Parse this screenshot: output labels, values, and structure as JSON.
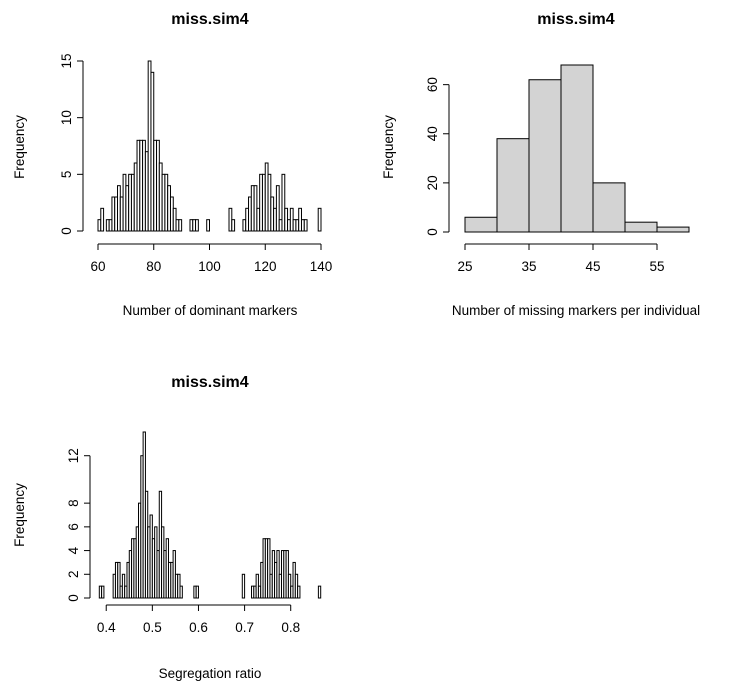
{
  "chart_data": [
    {
      "type": "bar",
      "title": "miss.sim4",
      "xlabel": "Number of dominant markers",
      "ylabel": "Frequency",
      "xlim": [
        60,
        140
      ],
      "ylim": [
        0,
        15
      ],
      "xticks": [
        60,
        80,
        100,
        120,
        140
      ],
      "yticks": [
        0,
        5,
        10,
        15
      ],
      "bar_color": "#ffffff",
      "bins": [
        [
          60,
          61,
          1
        ],
        [
          61,
          62,
          2
        ],
        [
          62,
          63,
          0
        ],
        [
          63,
          64,
          1
        ],
        [
          64,
          65,
          1
        ],
        [
          65,
          66,
          3
        ],
        [
          66,
          67,
          3
        ],
        [
          67,
          68,
          4
        ],
        [
          68,
          69,
          3
        ],
        [
          69,
          70,
          5
        ],
        [
          70,
          71,
          4
        ],
        [
          71,
          72,
          5
        ],
        [
          72,
          73,
          5
        ],
        [
          73,
          74,
          6
        ],
        [
          74,
          75,
          8
        ],
        [
          75,
          76,
          8
        ],
        [
          76,
          77,
          8
        ],
        [
          77,
          78,
          7
        ],
        [
          78,
          79,
          15
        ],
        [
          79,
          80,
          14
        ],
        [
          80,
          81,
          8
        ],
        [
          81,
          82,
          8
        ],
        [
          82,
          83,
          6
        ],
        [
          83,
          84,
          5
        ],
        [
          84,
          85,
          5
        ],
        [
          85,
          86,
          4
        ],
        [
          86,
          87,
          3
        ],
        [
          87,
          88,
          2
        ],
        [
          88,
          89,
          1
        ],
        [
          89,
          90,
          1
        ],
        [
          90,
          91,
          0
        ],
        [
          91,
          92,
          0
        ],
        [
          92,
          93,
          0
        ],
        [
          93,
          94,
          1
        ],
        [
          94,
          95,
          1
        ],
        [
          95,
          96,
          1
        ],
        [
          96,
          97,
          0
        ],
        [
          97,
          98,
          0
        ],
        [
          98,
          99,
          0
        ],
        [
          99,
          100,
          1
        ],
        [
          100,
          101,
          0
        ],
        [
          101,
          102,
          0
        ],
        [
          102,
          103,
          0
        ],
        [
          103,
          104,
          0
        ],
        [
          104,
          105,
          0
        ],
        [
          105,
          106,
          0
        ],
        [
          106,
          107,
          0
        ],
        [
          107,
          108,
          2
        ],
        [
          108,
          109,
          1
        ],
        [
          109,
          110,
          0
        ],
        [
          110,
          111,
          0
        ],
        [
          111,
          112,
          0
        ],
        [
          112,
          113,
          1
        ],
        [
          113,
          114,
          2
        ],
        [
          114,
          115,
          3
        ],
        [
          115,
          116,
          4
        ],
        [
          116,
          117,
          4
        ],
        [
          117,
          118,
          2
        ],
        [
          118,
          119,
          5
        ],
        [
          119,
          120,
          5
        ],
        [
          120,
          121,
          6
        ],
        [
          121,
          122,
          5
        ],
        [
          122,
          123,
          3
        ],
        [
          123,
          124,
          2
        ],
        [
          124,
          125,
          4
        ],
        [
          125,
          126,
          1
        ],
        [
          126,
          127,
          5
        ],
        [
          127,
          128,
          2
        ],
        [
          128,
          129,
          1
        ],
        [
          129,
          130,
          2
        ],
        [
          130,
          131,
          1
        ],
        [
          131,
          132,
          1
        ],
        [
          132,
          133,
          2
        ],
        [
          133,
          134,
          1
        ],
        [
          134,
          135,
          1
        ],
        [
          135,
          136,
          0
        ],
        [
          136,
          137,
          0
        ],
        [
          137,
          138,
          0
        ],
        [
          138,
          139,
          0
        ],
        [
          139,
          140,
          2
        ]
      ]
    },
    {
      "type": "bar",
      "title": "miss.sim4",
      "xlabel": "Number of missing markers per individual",
      "ylabel": "Frequency",
      "xlim": [
        25,
        60
      ],
      "ylim": [
        0,
        68
      ],
      "xticks": [
        25,
        35,
        45,
        55
      ],
      "yticks": [
        0,
        20,
        40,
        60
      ],
      "bar_color": "#d3d3d3",
      "bins": [
        [
          25,
          30,
          6
        ],
        [
          30,
          35,
          38
        ],
        [
          35,
          40,
          62
        ],
        [
          40,
          45,
          68
        ],
        [
          45,
          50,
          20
        ],
        [
          50,
          55,
          4
        ],
        [
          55,
          60,
          2
        ]
      ]
    },
    {
      "type": "bar",
      "title": "miss.sim4",
      "xlabel": "Segregation ratio",
      "ylabel": "Frequency",
      "xlim": [
        0.38,
        0.87
      ],
      "ylim": [
        0,
        14
      ],
      "xticks": [
        0.4,
        0.5,
        0.6,
        0.7,
        0.8
      ],
      "yticks": [
        0,
        2,
        4,
        6,
        8,
        12
      ],
      "bar_color": "#ffffff",
      "bins": [
        [
          0.385,
          0.39,
          1
        ],
        [
          0.39,
          0.395,
          1
        ],
        [
          0.395,
          0.4,
          0
        ],
        [
          0.4,
          0.405,
          0
        ],
        [
          0.405,
          0.41,
          0
        ],
        [
          0.41,
          0.415,
          0
        ],
        [
          0.415,
          0.42,
          2
        ],
        [
          0.42,
          0.425,
          3
        ],
        [
          0.425,
          0.43,
          3
        ],
        [
          0.43,
          0.435,
          1
        ],
        [
          0.435,
          0.44,
          2
        ],
        [
          0.44,
          0.445,
          1
        ],
        [
          0.445,
          0.45,
          3
        ],
        [
          0.45,
          0.455,
          4
        ],
        [
          0.455,
          0.46,
          5
        ],
        [
          0.46,
          0.465,
          5
        ],
        [
          0.465,
          0.47,
          6
        ],
        [
          0.47,
          0.475,
          8
        ],
        [
          0.475,
          0.48,
          12
        ],
        [
          0.48,
          0.485,
          14
        ],
        [
          0.485,
          0.49,
          9
        ],
        [
          0.49,
          0.495,
          6
        ],
        [
          0.495,
          0.5,
          7
        ],
        [
          0.5,
          0.505,
          5
        ],
        [
          0.505,
          0.51,
          6
        ],
        [
          0.51,
          0.515,
          4
        ],
        [
          0.515,
          0.52,
          9
        ],
        [
          0.52,
          0.525,
          6
        ],
        [
          0.525,
          0.53,
          4
        ],
        [
          0.53,
          0.535,
          5
        ],
        [
          0.535,
          0.54,
          3
        ],
        [
          0.54,
          0.545,
          3
        ],
        [
          0.545,
          0.55,
          4
        ],
        [
          0.55,
          0.555,
          2
        ],
        [
          0.555,
          0.56,
          2
        ],
        [
          0.56,
          0.565,
          1
        ],
        [
          0.565,
          0.57,
          0
        ],
        [
          0.57,
          0.575,
          0
        ],
        [
          0.575,
          0.58,
          0
        ],
        [
          0.58,
          0.585,
          0
        ],
        [
          0.585,
          0.59,
          0
        ],
        [
          0.59,
          0.595,
          1
        ],
        [
          0.595,
          0.6,
          1
        ],
        [
          0.6,
          0.605,
          0
        ],
        [
          0.605,
          0.61,
          0
        ],
        [
          0.61,
          0.615,
          0
        ],
        [
          0.615,
          0.62,
          0
        ],
        [
          0.62,
          0.625,
          0
        ],
        [
          0.625,
          0.63,
          0
        ],
        [
          0.63,
          0.635,
          0
        ],
        [
          0.635,
          0.64,
          0
        ],
        [
          0.64,
          0.645,
          0
        ],
        [
          0.645,
          0.65,
          0
        ],
        [
          0.65,
          0.655,
          0
        ],
        [
          0.655,
          0.66,
          0
        ],
        [
          0.66,
          0.665,
          0
        ],
        [
          0.665,
          0.67,
          0
        ],
        [
          0.67,
          0.675,
          0
        ],
        [
          0.675,
          0.68,
          0
        ],
        [
          0.68,
          0.685,
          0
        ],
        [
          0.685,
          0.69,
          0
        ],
        [
          0.69,
          0.695,
          0
        ],
        [
          0.695,
          0.7,
          2
        ],
        [
          0.7,
          0.705,
          0
        ],
        [
          0.705,
          0.71,
          0
        ],
        [
          0.71,
          0.715,
          0
        ],
        [
          0.715,
          0.72,
          1
        ],
        [
          0.72,
          0.725,
          1
        ],
        [
          0.725,
          0.73,
          2
        ],
        [
          0.73,
          0.735,
          1
        ],
        [
          0.735,
          0.74,
          3
        ],
        [
          0.74,
          0.745,
          5
        ],
        [
          0.745,
          0.75,
          5
        ],
        [
          0.75,
          0.755,
          5
        ],
        [
          0.755,
          0.76,
          2
        ],
        [
          0.76,
          0.765,
          4
        ],
        [
          0.765,
          0.77,
          3
        ],
        [
          0.77,
          0.775,
          4
        ],
        [
          0.775,
          0.78,
          2
        ],
        [
          0.78,
          0.785,
          4
        ],
        [
          0.785,
          0.79,
          4
        ],
        [
          0.79,
          0.795,
          4
        ],
        [
          0.795,
          0.8,
          2
        ],
        [
          0.8,
          0.805,
          1
        ],
        [
          0.805,
          0.81,
          3
        ],
        [
          0.81,
          0.815,
          2
        ],
        [
          0.815,
          0.82,
          1
        ],
        [
          0.82,
          0.825,
          0
        ],
        [
          0.825,
          0.83,
          0
        ],
        [
          0.83,
          0.835,
          0
        ],
        [
          0.835,
          0.84,
          0
        ],
        [
          0.84,
          0.845,
          0
        ],
        [
          0.845,
          0.85,
          0
        ],
        [
          0.85,
          0.855,
          0
        ],
        [
          0.855,
          0.86,
          0
        ],
        [
          0.86,
          0.865,
          1
        ]
      ]
    }
  ]
}
